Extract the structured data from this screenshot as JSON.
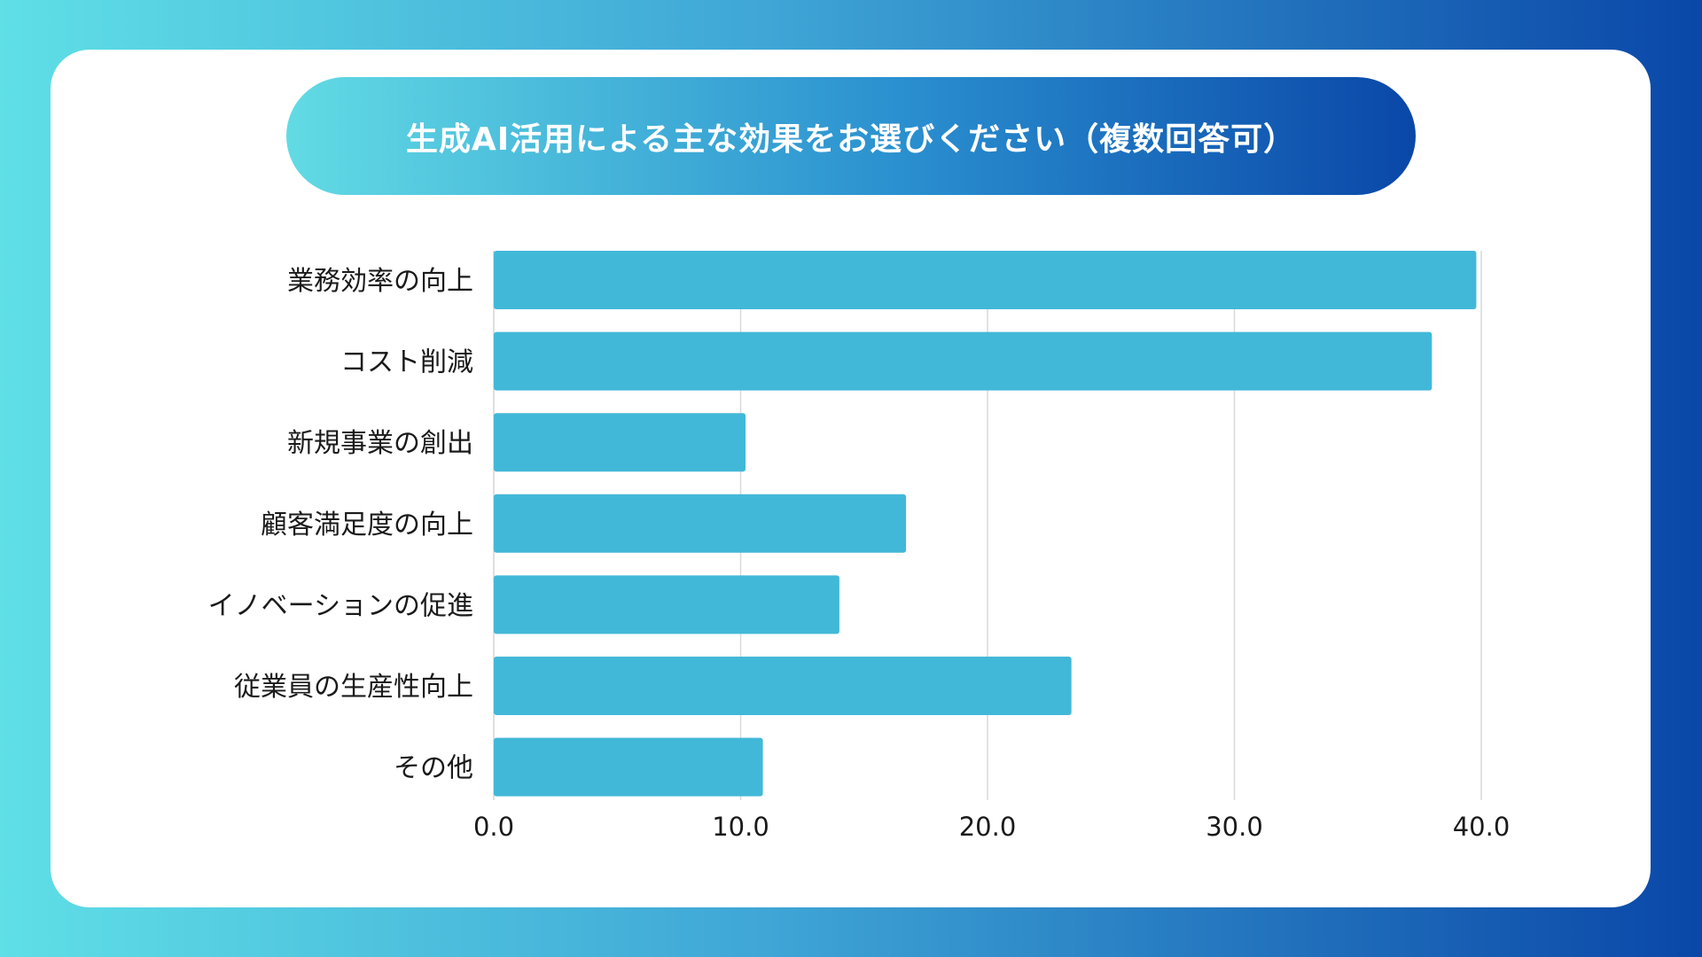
{
  "title": "生成AI活用による主な効果をお選びください（複数回答可）",
  "chart_data": {
    "type": "bar",
    "orientation": "horizontal",
    "title": "生成AI活用による主な効果をお選びください（複数回答可）",
    "categories": [
      "業務効率の向上",
      "コスト削減",
      "新規事業の創出",
      "顧客満足度の向上",
      "イノベーションの促進",
      "従業員の生産性向上",
      "その他"
    ],
    "values": [
      39.8,
      38.0,
      10.2,
      16.7,
      14.0,
      23.4,
      10.9
    ],
    "xlim": [
      0,
      40
    ],
    "xticks": [
      "0.0",
      "10.0",
      "20.0",
      "30.0",
      "40.0"
    ],
    "xlabel": "",
    "ylabel": "",
    "grid": "vertical",
    "bar_color": "#42b8d8",
    "grid_color": "#d9d9d9"
  }
}
